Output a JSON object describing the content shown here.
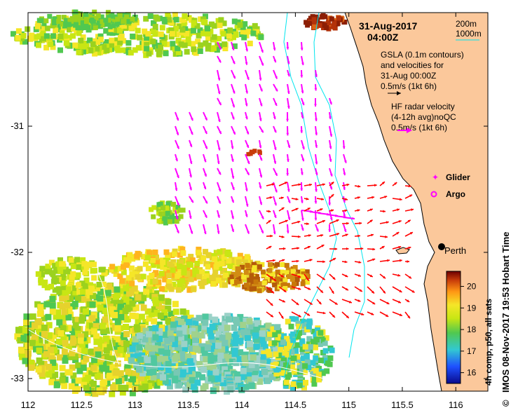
{
  "date_line1": "31-Aug-2017",
  "date_line2": "04:00Z",
  "contour_legend": {
    "c200": "200m",
    "c1000": "1000m"
  },
  "gsla_text": [
    "GSLA (0.1m contours)",
    "and velocities for",
    "31-Aug 00:00Z",
    "0.5m/s (1kt 6h)"
  ],
  "hf_text": [
    "HF radar velocity",
    "(4-12h avg)noQC",
    "0.5m/s (1kt 6h)"
  ],
  "glider_label": "Glider",
  "argo_label": "Argo",
  "city_label": "Perth",
  "colorbar": {
    "ticks": [
      "20",
      "19",
      "18",
      "17",
      "16"
    ],
    "label": "4h comp, p50, all sats"
  },
  "side_label": "IMOS 08-Nov-2017 19:53 Hobart Time",
  "copyright_symbol": "©",
  "colors": {
    "land": "#fbc89b",
    "gsla_arrow": "#ff00ff",
    "hf_arrow": "#ff0000",
    "contour": "#00e5ee"
  },
  "chart_data": {
    "type": "map",
    "x_ticks": [
      "112",
      "112.5",
      "113",
      "113.5",
      "114",
      "114.5",
      "115",
      "115.5",
      "116"
    ],
    "y_ticks": [
      "-31",
      "-32",
      "-33"
    ],
    "xlim": [
      112,
      116.3
    ],
    "ylim": [
      -33.1,
      -30.1
    ],
    "perth": {
      "lon": 115.86,
      "lat": -31.95
    }
  }
}
